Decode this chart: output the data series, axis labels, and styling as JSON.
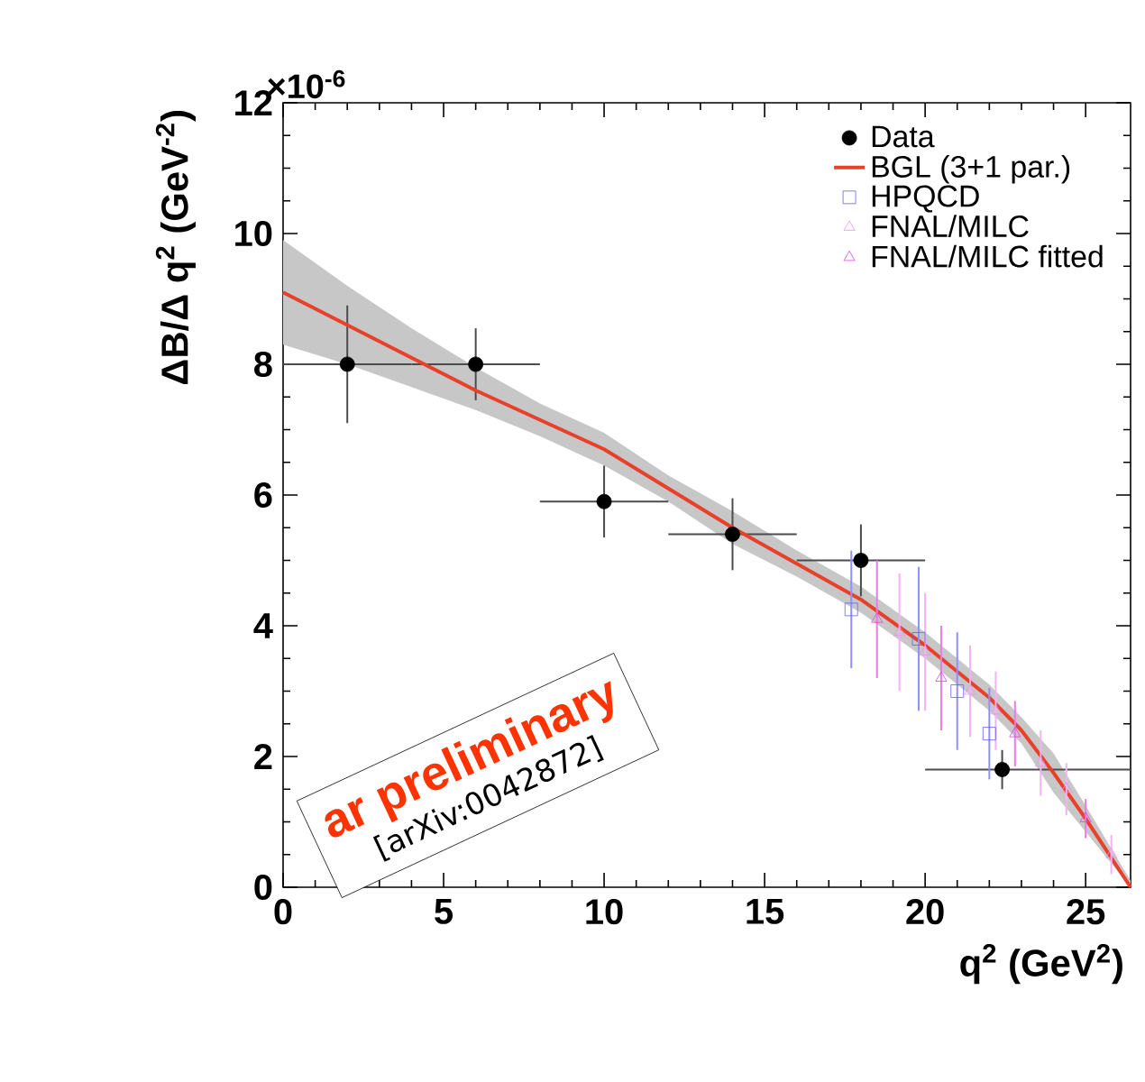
{
  "chart_data": {
    "type": "scatter",
    "xlabel": "q$^{2}$ (GeV$^{2}$)",
    "ylabel": "ΔB/Δ q$^{2}$ (GeV$^{-2}$)",
    "xlim": [
      0,
      26.4
    ],
    "ylim": [
      0,
      12
    ],
    "xticks": [
      0,
      5,
      10,
      15,
      20,
      25
    ],
    "yticks": [
      0,
      2,
      4,
      6,
      8,
      10,
      12
    ],
    "legend": "top right",
    "grid": false,
    "annotations": [
      "×10$^{-6}$",
      "ar preliminary",
      "[arXiv:0042872]"
    ],
    "series": [
      {
        "name": "Data",
        "marker": "circle",
        "color": "#000000",
        "x": [
          2,
          6,
          10,
          14,
          18,
          22.4
        ],
        "values": [
          8.0,
          8.0,
          5.9,
          5.4,
          5.0,
          1.8
        ],
        "errors": [
          0.9,
          0.55,
          0.55,
          0.55,
          0.55,
          0.3
        ],
        "xerrors": [
          2,
          2,
          2,
          2,
          2,
          [
            20,
            26.4
          ]
        ]
      },
      {
        "name": "BGL (3+1 par.)",
        "type": "line",
        "marker": "none",
        "color": "#e8402a",
        "x": [
          0,
          2,
          4,
          6,
          8,
          10,
          12,
          14,
          16,
          18,
          20,
          22,
          23,
          24,
          25,
          26.4
        ],
        "values": [
          9.1,
          8.6,
          8.1,
          7.6,
          7.15,
          6.7,
          6.1,
          5.5,
          4.95,
          4.4,
          3.7,
          2.9,
          2.4,
          1.75,
          1.05,
          0
        ],
        "lower": [
          8.3,
          8.0,
          7.65,
          7.3,
          6.9,
          6.45,
          5.9,
          5.25,
          4.75,
          4.2,
          3.5,
          2.7,
          2.2,
          1.45,
          0.85,
          0
        ],
        "upper": [
          9.9,
          9.2,
          8.55,
          7.95,
          7.4,
          6.95,
          6.3,
          5.75,
          5.15,
          4.6,
          3.9,
          3.1,
          2.6,
          2.05,
          1.25,
          0.1
        ]
      },
      {
        "name": "HPQCD",
        "marker": "square",
        "color": "#6060ff",
        "x": [
          17.7,
          19.8,
          21.0,
          22.0
        ],
        "values": [
          4.25,
          3.8,
          3.0,
          2.35
        ],
        "errors": [
          0.9,
          1.1,
          0.9,
          0.7
        ]
      },
      {
        "name": "FNAL/MILC",
        "marker": "triangle",
        "color": "#f090f0",
        "x": [
          19.2,
          20.0,
          21.4,
          22.2,
          23.6,
          24.4,
          25.8
        ],
        "values": [
          3.9,
          3.6,
          3.0,
          2.7,
          1.9,
          1.5,
          0.5
        ],
        "errors": [
          0.9,
          0.9,
          0.7,
          0.6,
          0.5,
          0.4,
          0.3
        ]
      },
      {
        "name": "FNAL/MILC fitted",
        "marker": "triangle",
        "color": "#dd44dd",
        "x": [
          18.5,
          20.5,
          22.8,
          25.0
        ],
        "values": [
          4.1,
          3.2,
          2.35,
          1.05
        ],
        "errors": [
          0.9,
          0.8,
          0.5,
          0.3
        ]
      }
    ]
  }
}
